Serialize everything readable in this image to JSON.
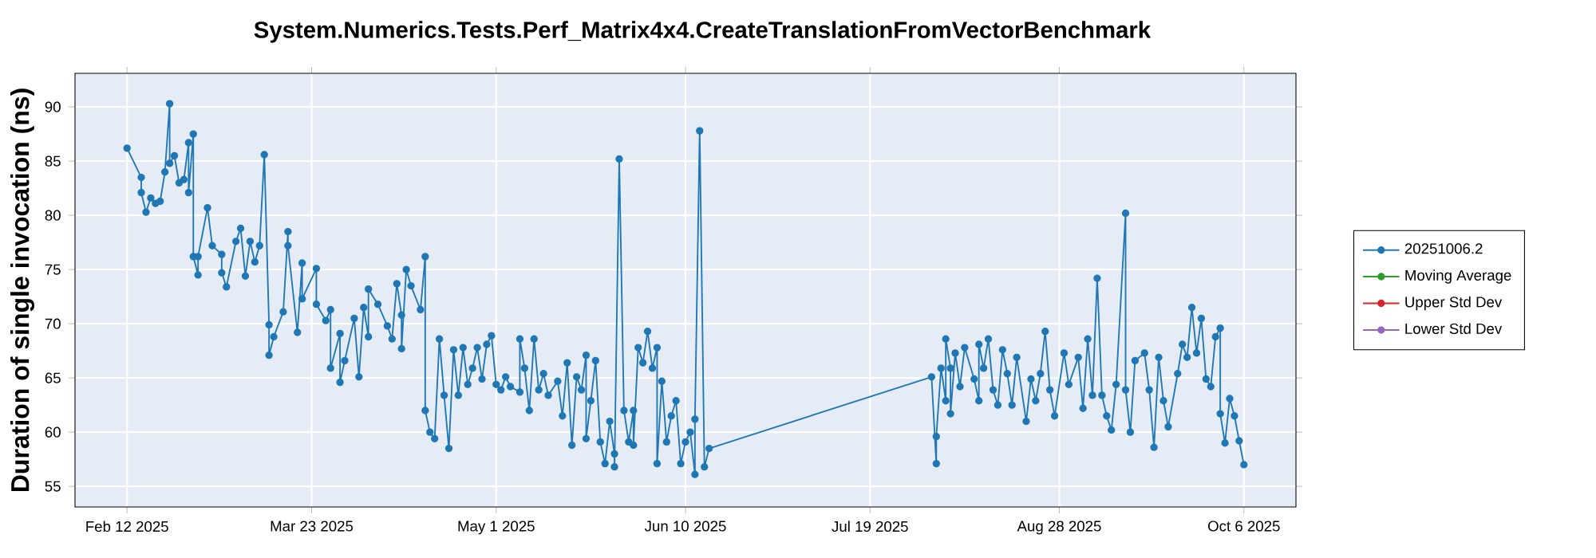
{
  "chart_data": {
    "type": "line",
    "title": "System.Numerics.Tests.Perf_Matrix4x4.CreateTranslationFromVectorBenchmark",
    "ylabel": "Duration of single invocation (ns)",
    "xlim": [
      "2025-02-01",
      "2025-10-17"
    ],
    "ylim": [
      53.1,
      93.1
    ],
    "xticks": [
      {
        "value": "2025-02-12",
        "label": "Feb 12 2025"
      },
      {
        "value": "2025-03-23",
        "label": "Mar 23 2025"
      },
      {
        "value": "2025-05-01",
        "label": "May 1 2025"
      },
      {
        "value": "2025-06-10",
        "label": "Jun 10 2025"
      },
      {
        "value": "2025-07-19",
        "label": "Jul 19 2025"
      },
      {
        "value": "2025-08-28",
        "label": "Aug 28 2025"
      },
      {
        "value": "2025-10-06",
        "label": "Oct 6 2025"
      }
    ],
    "yticks": [
      55,
      60,
      65,
      70,
      75,
      80,
      85,
      90
    ],
    "grid": true,
    "legend": "right",
    "marker": "circle",
    "series": [
      {
        "name": "20251006.2",
        "color": "#1f77b4",
        "x": [
          "2025-02-12",
          "2025-02-15",
          "2025-02-15",
          "2025-02-16",
          "2025-02-17",
          "2025-02-18",
          "2025-02-19",
          "2025-02-20",
          "2025-02-21",
          "2025-02-21",
          "2025-02-22",
          "2025-02-23",
          "2025-02-24",
          "2025-02-25",
          "2025-02-25",
          "2025-02-26",
          "2025-02-26",
          "2025-02-27",
          "2025-02-27",
          "2025-03-01",
          "2025-03-02",
          "2025-03-04",
          "2025-03-04",
          "2025-03-05",
          "2025-03-07",
          "2025-03-08",
          "2025-03-09",
          "2025-03-10",
          "2025-03-11",
          "2025-03-12",
          "2025-03-13",
          "2025-03-14",
          "2025-03-14",
          "2025-03-15",
          "2025-03-17",
          "2025-03-18",
          "2025-03-18",
          "2025-03-20",
          "2025-03-21",
          "2025-03-21",
          "2025-03-24",
          "2025-03-24",
          "2025-03-26",
          "2025-03-27",
          "2025-03-27",
          "2025-03-29",
          "2025-03-29",
          "2025-03-30",
          "2025-04-01",
          "2025-04-02",
          "2025-04-03",
          "2025-04-04",
          "2025-04-04",
          "2025-04-06",
          "2025-04-08",
          "2025-04-09",
          "2025-04-10",
          "2025-04-11",
          "2025-04-11",
          "2025-04-12",
          "2025-04-13",
          "2025-04-15",
          "2025-04-16",
          "2025-04-16",
          "2025-04-17",
          "2025-04-18",
          "2025-04-19",
          "2025-04-20",
          "2025-04-21",
          "2025-04-22",
          "2025-04-23",
          "2025-04-24",
          "2025-04-25",
          "2025-04-26",
          "2025-04-27",
          "2025-04-28",
          "2025-04-29",
          "2025-04-30",
          "2025-05-01",
          "2025-05-02",
          "2025-05-03",
          "2025-05-04",
          "2025-05-06",
          "2025-05-06",
          "2025-05-07",
          "2025-05-08",
          "2025-05-09",
          "2025-05-10",
          "2025-05-11",
          "2025-05-12",
          "2025-05-14",
          "2025-05-15",
          "2025-05-16",
          "2025-05-17",
          "2025-05-18",
          "2025-05-19",
          "2025-05-20",
          "2025-05-20",
          "2025-05-21",
          "2025-05-22",
          "2025-05-23",
          "2025-05-24",
          "2025-05-25",
          "2025-05-26",
          "2025-05-26",
          "2025-05-27",
          "2025-05-28",
          "2025-05-29",
          "2025-05-30",
          "2025-05-30",
          "2025-05-31",
          "2025-06-01",
          "2025-06-02",
          "2025-06-03",
          "2025-06-04",
          "2025-06-04",
          "2025-06-05",
          "2025-06-06",
          "2025-06-07",
          "2025-06-08",
          "2025-06-09",
          "2025-06-10",
          "2025-06-11",
          "2025-06-12",
          "2025-06-12",
          "2025-06-13",
          "2025-06-14",
          "2025-06-15",
          "2025-08-01",
          "2025-08-02",
          "2025-08-02",
          "2025-08-03",
          "2025-08-04",
          "2025-08-04",
          "2025-08-05",
          "2025-08-05",
          "2025-08-06",
          "2025-08-07",
          "2025-08-08",
          "2025-08-10",
          "2025-08-11",
          "2025-08-11",
          "2025-08-12",
          "2025-08-13",
          "2025-08-14",
          "2025-08-15",
          "2025-08-16",
          "2025-08-17",
          "2025-08-18",
          "2025-08-19",
          "2025-08-21",
          "2025-08-22",
          "2025-08-23",
          "2025-08-24",
          "2025-08-25",
          "2025-08-26",
          "2025-08-27",
          "2025-08-29",
          "2025-08-30",
          "2025-09-01",
          "2025-09-02",
          "2025-09-03",
          "2025-09-04",
          "2025-09-05",
          "2025-09-06",
          "2025-09-07",
          "2025-09-08",
          "2025-09-09",
          "2025-09-11",
          "2025-09-11",
          "2025-09-12",
          "2025-09-13",
          "2025-09-15",
          "2025-09-16",
          "2025-09-17",
          "2025-09-18",
          "2025-09-19",
          "2025-09-20",
          "2025-09-22",
          "2025-09-23",
          "2025-09-24",
          "2025-09-25",
          "2025-09-26",
          "2025-09-27",
          "2025-09-28",
          "2025-09-29",
          "2025-09-30",
          "2025-10-01",
          "2025-10-01",
          "2025-10-02",
          "2025-10-03",
          "2025-10-04",
          "2025-10-05",
          "2025-10-06"
        ],
        "values": [
          86.2,
          83.5,
          82.1,
          80.3,
          81.6,
          81.1,
          81.3,
          84.0,
          90.3,
          84.8,
          85.5,
          83.0,
          83.3,
          86.7,
          82.1,
          87.5,
          76.2,
          74.5,
          76.2,
          80.7,
          77.2,
          76.4,
          74.7,
          73.4,
          77.6,
          78.8,
          74.4,
          77.6,
          75.7,
          77.2,
          85.6,
          69.9,
          67.1,
          68.8,
          71.1,
          78.5,
          77.2,
          69.2,
          75.6,
          72.3,
          75.1,
          71.8,
          70.3,
          71.3,
          65.9,
          69.1,
          64.6,
          66.6,
          70.5,
          65.1,
          71.5,
          68.8,
          73.2,
          71.8,
          69.8,
          68.6,
          73.7,
          70.8,
          67.7,
          75.0,
          73.5,
          71.3,
          76.2,
          62.0,
          60.0,
          59.4,
          68.6,
          63.4,
          58.5,
          67.6,
          63.4,
          67.8,
          64.4,
          65.9,
          67.8,
          64.9,
          68.1,
          68.9,
          64.4,
          63.9,
          65.1,
          64.2,
          63.7,
          68.6,
          65.9,
          62.0,
          68.6,
          63.9,
          65.4,
          63.4,
          64.7,
          61.5,
          66.4,
          58.8,
          65.1,
          63.9,
          67.1,
          59.4,
          62.9,
          66.6,
          59.1,
          57.1,
          61.0,
          58.0,
          56.8,
          85.2,
          62.0,
          59.1,
          62.0,
          58.8,
          67.8,
          66.4,
          69.3,
          65.9,
          67.8,
          57.1,
          64.7,
          59.1,
          61.5,
          62.9,
          57.1,
          59.1,
          60.0,
          56.1,
          61.2,
          87.8,
          56.8,
          58.5,
          65.1,
          57.1,
          59.6,
          65.9,
          62.9,
          68.6,
          65.9,
          61.7,
          67.3,
          64.2,
          67.8,
          64.9,
          62.9,
          68.1,
          65.9,
          68.6,
          63.9,
          62.5,
          67.6,
          65.4,
          62.5,
          66.9,
          61.0,
          64.9,
          62.9,
          65.4,
          69.3,
          63.9,
          61.5,
          67.3,
          64.4,
          66.9,
          62.2,
          68.6,
          63.4,
          74.2,
          63.4,
          61.5,
          60.2,
          64.4,
          80.2,
          63.9,
          60.0,
          66.6,
          67.3,
          63.9,
          58.6,
          66.9,
          62.9,
          60.5,
          65.4,
          68.1,
          66.9,
          71.5,
          67.3,
          70.5,
          64.9,
          64.2,
          68.8,
          69.6,
          61.7,
          59.0,
          63.1,
          61.5,
          59.2,
          57.0
        ]
      },
      {
        "name": "Moving Average",
        "color": "#2ca02c"
      },
      {
        "name": "Upper Std Dev",
        "color": "#d62728"
      },
      {
        "name": "Lower Std Dev",
        "color": "#9467bd"
      }
    ]
  }
}
